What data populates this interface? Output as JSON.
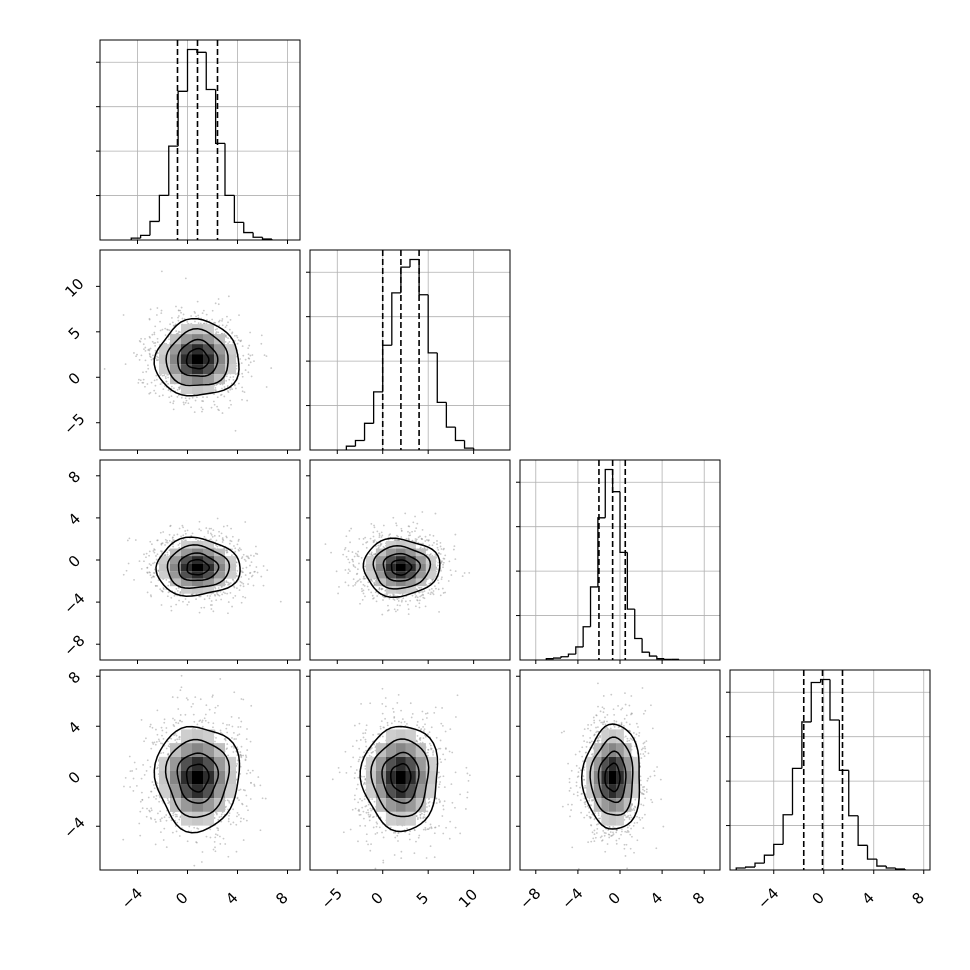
{
  "chart_data": {
    "type": "corner",
    "grid": true,
    "parameters": [
      {
        "range": [
          -7,
          9
        ],
        "ticks": [
          -4,
          0,
          4,
          8
        ],
        "tick_labels": [
          "−4",
          "0",
          "4",
          "8"
        ],
        "quantiles": [
          -0.8,
          0.8,
          2.4
        ],
        "hist_bin_edges": [
          -4.5,
          -3.75,
          -3.0,
          -2.25,
          -1.5,
          -0.75,
          0.0,
          0.75,
          1.5,
          2.25,
          3.0,
          3.75,
          4.5,
          5.25,
          6.0,
          6.75
        ],
        "hist_counts": [
          2,
          5,
          20,
          48,
          101,
          160,
          205,
          202,
          162,
          104,
          48,
          19,
          8,
          3,
          1
        ]
      },
      {
        "range": [
          -8,
          14
        ],
        "ticks": [
          -5,
          0,
          5,
          10
        ],
        "tick_labels": [
          "−5",
          "0",
          "5",
          "10"
        ],
        "quantiles": [
          0.0,
          2.0,
          4.0
        ],
        "hist_bin_edges": [
          -4.0,
          -3.0,
          -2.0,
          -1.0,
          0.0,
          1.0,
          2.0,
          3.0,
          4.0,
          5.0,
          6.0,
          7.0,
          8.0,
          9.0,
          10.0
        ],
        "hist_counts": [
          4,
          10,
          28,
          61,
          110,
          165,
          192,
          200,
          163,
          102,
          50,
          24,
          10,
          2
        ]
      },
      {
        "range": [
          -9.5,
          9.5
        ],
        "ticks": [
          -8,
          -4,
          0,
          4,
          8
        ],
        "tick_labels": [
          "−8",
          "−4",
          "0",
          "4",
          "8"
        ],
        "quantiles": [
          -2.0,
          -0.7,
          0.5
        ],
        "hist_bin_edges": [
          -7.0,
          -6.3,
          -5.6,
          -4.9,
          -4.2,
          -3.5,
          -2.8,
          -2.1,
          -1.4,
          -0.7,
          0.0,
          0.7,
          1.4,
          2.1,
          2.8,
          3.5,
          4.2,
          4.9,
          5.6
        ],
        "hist_counts": [
          2,
          3,
          5,
          9,
          20,
          51,
          112,
          218,
          292,
          258,
          165,
          78,
          33,
          12,
          6,
          2,
          1,
          1
        ]
      },
      {
        "range": [
          -7.5,
          8.5
        ],
        "ticks": [
          -4,
          0,
          4,
          8
        ],
        "tick_labels": [
          "−4",
          "0",
          "4",
          "8"
        ],
        "quantiles": [
          -1.6,
          -0.1,
          1.5
        ],
        "hist_bin_edges": [
          -7.0,
          -6.25,
          -5.5,
          -4.75,
          -4.0,
          -3.25,
          -2.5,
          -1.75,
          -1.0,
          -0.25,
          0.5,
          1.25,
          2.0,
          2.75,
          3.5,
          4.25,
          5.0,
          5.75,
          6.5
        ],
        "hist_counts": [
          2,
          3,
          7,
          15,
          26,
          56,
          103,
          150,
          190,
          193,
          152,
          101,
          55,
          25,
          11,
          4,
          2,
          1
        ]
      }
    ],
    "pairs": [
      {
        "x_param": 0,
        "y_param": 1,
        "mean": [
          0.8,
          2.0
        ],
        "sd": [
          1.6,
          2.0
        ]
      },
      {
        "x_param": 0,
        "y_param": 2,
        "mean": [
          0.8,
          -0.7
        ],
        "sd": [
          1.6,
          1.3
        ]
      },
      {
        "x_param": 1,
        "y_param": 2,
        "mean": [
          2.0,
          -0.7
        ],
        "sd": [
          2.0,
          1.3
        ]
      },
      {
        "x_param": 0,
        "y_param": 3,
        "mean": [
          0.8,
          -0.1
        ],
        "sd": [
          1.6,
          2.0
        ]
      },
      {
        "x_param": 1,
        "y_param": 3,
        "mean": [
          2.0,
          -0.1
        ],
        "sd": [
          2.0,
          2.0
        ]
      },
      {
        "x_param": 2,
        "y_param": 3,
        "mean": [
          -0.7,
          -0.1
        ],
        "sd": [
          1.3,
          2.0
        ]
      }
    ]
  }
}
